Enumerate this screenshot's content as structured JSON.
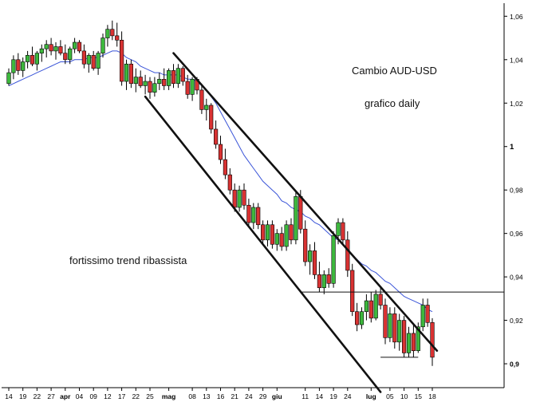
{
  "chart_data": {
    "type": "candlestick",
    "annotations": {
      "title": "Cambio AUD-USD",
      "subtitle": "grafico daily",
      "note": "fortissimo trend ribassista"
    },
    "y_axis": {
      "ylim": [
        0.889,
        1.066
      ],
      "tick_values": [
        0.9,
        0.92,
        0.94,
        0.96,
        0.98,
        1.0,
        1.02,
        1.04,
        1.06
      ],
      "tick_labels": [
        "0,9",
        "0,92",
        "0,94",
        "0,96",
        "0,98",
        "1",
        "1,02",
        "1,04",
        "1,06"
      ],
      "position": "right"
    },
    "x_axis": {
      "tick_labels": [
        "14",
        "19",
        "22",
        "27",
        "apr",
        "04",
        "09",
        "12",
        "17",
        "22",
        "25",
        "mag",
        "08",
        "13",
        "16",
        "21",
        "24",
        "29",
        "giu",
        "11",
        "14",
        "19",
        "24",
        "lug",
        "05",
        "10",
        "15",
        "18"
      ],
      "bold_labels": [
        "apr",
        "mag",
        "giu",
        "lug"
      ],
      "first_session_label": "14"
    },
    "colors": {
      "up": "#3db83d",
      "down": "#d93232",
      "ma": "#3b55d8",
      "trendline": "#111111"
    },
    "ohlc": [
      [
        1.029,
        1.036,
        1.028,
        1.034
      ],
      [
        1.034,
        1.042,
        1.031,
        1.04
      ],
      [
        1.04,
        1.043,
        1.033,
        1.035
      ],
      [
        1.035,
        1.041,
        1.032,
        1.039
      ],
      [
        1.039,
        1.044,
        1.036,
        1.042
      ],
      [
        1.042,
        1.046,
        1.037,
        1.038
      ],
      [
        1.038,
        1.044,
        1.035,
        1.043
      ],
      [
        1.043,
        1.047,
        1.039,
        1.045
      ],
      [
        1.045,
        1.049,
        1.041,
        1.047
      ],
      [
        1.047,
        1.05,
        1.042,
        1.044
      ],
      [
        1.044,
        1.048,
        1.04,
        1.046
      ],
      [
        1.046,
        1.049,
        1.042,
        1.043
      ],
      [
        1.043,
        1.047,
        1.038,
        1.04
      ],
      [
        1.04,
        1.046,
        1.038,
        1.045
      ],
      [
        1.045,
        1.05,
        1.043,
        1.048
      ],
      [
        1.048,
        1.049,
        1.043,
        1.044
      ],
      [
        1.044,
        1.047,
        1.036,
        1.038
      ],
      [
        1.038,
        1.043,
        1.034,
        1.042
      ],
      [
        1.042,
        1.044,
        1.035,
        1.036
      ],
      [
        1.036,
        1.044,
        1.033,
        1.043
      ],
      [
        1.043,
        1.052,
        1.041,
        1.05
      ],
      [
        1.05,
        1.056,
        1.046,
        1.054
      ],
      [
        1.054,
        1.058,
        1.049,
        1.051
      ],
      [
        1.051,
        1.057,
        1.046,
        1.049
      ],
      [
        1.049,
        1.053,
        1.028,
        1.03
      ],
      [
        1.03,
        1.04,
        1.026,
        1.038
      ],
      [
        1.038,
        1.04,
        1.027,
        1.029
      ],
      [
        1.029,
        1.036,
        1.025,
        1.032
      ],
      [
        1.032,
        1.035,
        1.027,
        1.028
      ],
      [
        1.028,
        1.033,
        1.024,
        1.03
      ],
      [
        1.03,
        1.032,
        1.022,
        1.025
      ],
      [
        1.025,
        1.032,
        1.023,
        1.029
      ],
      [
        1.029,
        1.034,
        1.026,
        1.031
      ],
      [
        1.031,
        1.036,
        1.026,
        1.028
      ],
      [
        1.028,
        1.036,
        1.026,
        1.035
      ],
      [
        1.035,
        1.038,
        1.027,
        1.029
      ],
      [
        1.029,
        1.038,
        1.027,
        1.036
      ],
      [
        1.036,
        1.037,
        1.028,
        1.03
      ],
      [
        1.03,
        1.033,
        1.022,
        1.024
      ],
      [
        1.024,
        1.032,
        1.021,
        1.031
      ],
      [
        1.031,
        1.032,
        1.024,
        1.026
      ],
      [
        1.026,
        1.028,
        1.015,
        1.017
      ],
      [
        1.017,
        1.022,
        1.012,
        1.019
      ],
      [
        1.019,
        1.02,
        1.006,
        1.008
      ],
      [
        1.008,
        1.012,
        0.999,
        1.001
      ],
      [
        1.001,
        1.005,
        0.992,
        0.994
      ],
      [
        0.994,
        0.999,
        0.985,
        0.987
      ],
      [
        0.987,
        0.99,
        0.978,
        0.98
      ],
      [
        0.98,
        0.983,
        0.97,
        0.972
      ],
      [
        0.972,
        0.982,
        0.97,
        0.98
      ],
      [
        0.98,
        0.983,
        0.971,
        0.973
      ],
      [
        0.973,
        0.976,
        0.963,
        0.965
      ],
      [
        0.965,
        0.974,
        0.962,
        0.972
      ],
      [
        0.972,
        0.974,
        0.962,
        0.964
      ],
      [
        0.964,
        0.966,
        0.955,
        0.957
      ],
      [
        0.957,
        0.966,
        0.954,
        0.964
      ],
      [
        0.964,
        0.966,
        0.953,
        0.955
      ],
      [
        0.955,
        0.962,
        0.952,
        0.96
      ],
      [
        0.96,
        0.963,
        0.952,
        0.954
      ],
      [
        0.954,
        0.966,
        0.952,
        0.964
      ],
      [
        0.964,
        0.967,
        0.955,
        0.957
      ],
      [
        0.957,
        0.979,
        0.955,
        0.977
      ],
      [
        0.977,
        0.98,
        0.96,
        0.962
      ],
      [
        0.962,
        0.966,
        0.945,
        0.947
      ],
      [
        0.947,
        0.955,
        0.941,
        0.952
      ],
      [
        0.952,
        0.956,
        0.939,
        0.941
      ],
      [
        0.941,
        0.947,
        0.933,
        0.935
      ],
      [
        0.935,
        0.943,
        0.932,
        0.941
      ],
      [
        0.941,
        0.944,
        0.935,
        0.937
      ],
      [
        0.937,
        0.961,
        0.935,
        0.959
      ],
      [
        0.959,
        0.967,
        0.955,
        0.965
      ],
      [
        0.965,
        0.967,
        0.955,
        0.957
      ],
      [
        0.957,
        0.961,
        0.94,
        0.943
      ],
      [
        0.943,
        0.946,
        0.922,
        0.924
      ],
      [
        0.924,
        0.928,
        0.915,
        0.918
      ],
      [
        0.918,
        0.926,
        0.916,
        0.924
      ],
      [
        0.924,
        0.932,
        0.92,
        0.929
      ],
      [
        0.929,
        0.933,
        0.919,
        0.921
      ],
      [
        0.921,
        0.934,
        0.92,
        0.932
      ],
      [
        0.932,
        0.935,
        0.925,
        0.927
      ],
      [
        0.927,
        0.93,
        0.909,
        0.912
      ],
      [
        0.912,
        0.926,
        0.91,
        0.923
      ],
      [
        0.923,
        0.926,
        0.907,
        0.91
      ],
      [
        0.91,
        0.923,
        0.906,
        0.92
      ],
      [
        0.92,
        0.922,
        0.903,
        0.905
      ],
      [
        0.905,
        0.917,
        0.903,
        0.914
      ],
      [
        0.914,
        0.918,
        0.903,
        0.906
      ],
      [
        0.906,
        0.919,
        0.905,
        0.917
      ],
      [
        0.917,
        0.93,
        0.915,
        0.927
      ],
      [
        0.927,
        0.93,
        0.917,
        0.919
      ],
      [
        0.919,
        0.921,
        0.899,
        0.903
      ]
    ],
    "moving_average": [
      1.028,
      1.029,
      1.03,
      1.031,
      1.032,
      1.033,
      1.034,
      1.035,
      1.036,
      1.037,
      1.038,
      1.039,
      1.039,
      1.039,
      1.04,
      1.04,
      1.04,
      1.041,
      1.041,
      1.041,
      1.042,
      1.043,
      1.044,
      1.044,
      1.043,
      1.041,
      1.04,
      1.039,
      1.037,
      1.036,
      1.035,
      1.034,
      1.034,
      1.033,
      1.033,
      1.033,
      1.033,
      1.032,
      1.031,
      1.031,
      1.03,
      1.028,
      1.026,
      1.023,
      1.02,
      1.016,
      1.012,
      1.008,
      1.004,
      1.0,
      0.996,
      0.993,
      0.99,
      0.987,
      0.984,
      0.982,
      0.98,
      0.978,
      0.975,
      0.974,
      0.972,
      0.971,
      0.97,
      0.968,
      0.967,
      0.965,
      0.964,
      0.962,
      0.96,
      0.958,
      0.957,
      0.955,
      0.953,
      0.95,
      0.948,
      0.946,
      0.945,
      0.943,
      0.942,
      0.94,
      0.938,
      0.937,
      0.935,
      0.933,
      0.931,
      0.93,
      0.929,
      0.928,
      0.927,
      0.925,
      0.924
    ],
    "channel": {
      "upper_line": {
        "from": [
          "2013-05-02",
          1.043
        ],
        "to": [
          "2013-07-19",
          0.906
        ]
      },
      "lower_line": {
        "from": [
          "2013-04-24",
          1.023
        ],
        "to": [
          "2013-07-03",
          0.887
        ]
      }
    },
    "horizontal_lines": [
      {
        "level": 0.933,
        "from": "2013-06-10",
        "to": "end"
      },
      {
        "level": 0.903,
        "from": "2013-07-03",
        "to": "2013-07-15"
      }
    ],
    "grid": false,
    "legend": "none"
  }
}
